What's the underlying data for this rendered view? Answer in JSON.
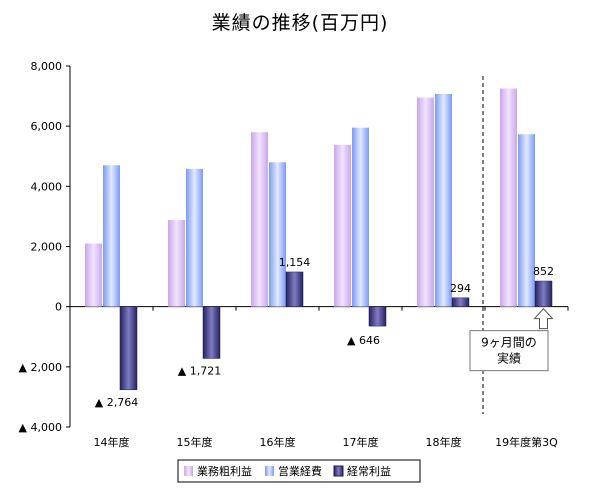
{
  "title": "業績の推移(百万円)",
  "chart_data": {
    "type": "bar",
    "title": "業績の推移(百万円)",
    "categories": [
      "14年度",
      "15年度",
      "16年度",
      "17年度",
      "18年度",
      "19年度第3Q"
    ],
    "ylim": [
      -4000,
      8000
    ],
    "yticks": [
      8000,
      6000,
      4000,
      2000,
      0,
      -2000,
      -4000
    ],
    "ytick_labels": [
      "8,000",
      "6,000",
      "4,000",
      "2,000",
      "0",
      "▲ 2,000",
      "▲ 4,000"
    ],
    "grid": false,
    "legend_position": "bottom",
    "series": [
      {
        "name": "業務粗利益",
        "values": [
          2100,
          2880,
          5800,
          5380,
          6950,
          7250
        ],
        "color": "#d8b8f0"
      },
      {
        "name": "営業経費",
        "values": [
          4700,
          4580,
          4800,
          5950,
          7070,
          5730
        ],
        "color": "#8eaaf8"
      },
      {
        "name": "経常利益",
        "values": [
          -2764,
          -1721,
          1154,
          -646,
          294,
          852
        ],
        "color": "#3a3878"
      }
    ],
    "data_labels": [
      "▲ 2,764",
      "▲ 1,721",
      "1,154",
      "▲ 646",
      "294",
      "852"
    ],
    "annotation": [
      "9ヶ月間の",
      "実績"
    ]
  }
}
